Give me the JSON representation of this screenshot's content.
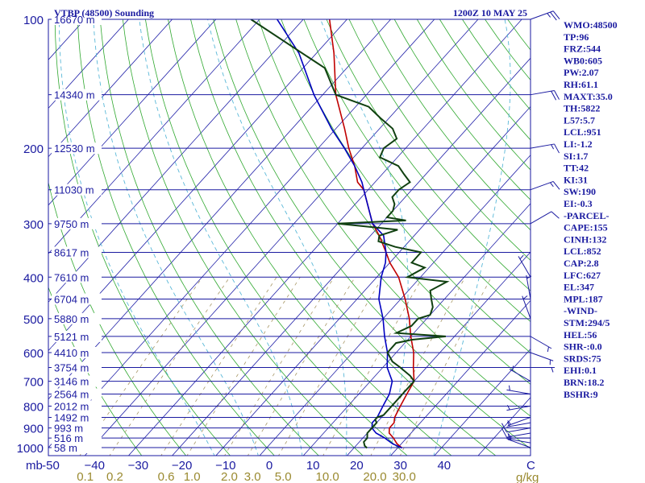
{
  "chart_data": {
    "type": "line",
    "title_left": "VTBP (48500) Sounding",
    "title_right": "1200Z 10 MAY 25",
    "y_unit_label": "mb",
    "mix_unit_label": "g/kg",
    "pressure_levels": [
      100,
      200,
      300,
      400,
      500,
      600,
      700,
      800,
      900,
      1000
    ],
    "temperature_ticks": [
      -50,
      -40,
      -30,
      -20,
      -10,
      0,
      10,
      20,
      30,
      40
    ],
    "temperature_end_tick": "C",
    "mixing_ratio_ticks": [
      "0.1",
      "0.2",
      "0.6",
      "1.0",
      "2.0",
      "3.0",
      "5.0",
      "10.0",
      "20.0",
      "30.0"
    ],
    "heights": [
      {
        "p": 100,
        "label": "16670 m"
      },
      {
        "p": 150,
        "label": "14340 m"
      },
      {
        "p": 200,
        "label": "12530 m"
      },
      {
        "p": 250,
        "label": "11030 m"
      },
      {
        "p": 300,
        "label": "9750 m"
      },
      {
        "p": 350,
        "label": "8617 m"
      },
      {
        "p": 400,
        "label": "7610 m"
      },
      {
        "p": 450,
        "label": "6704 m"
      },
      {
        "p": 500,
        "label": "5880 m"
      },
      {
        "p": 550,
        "label": "5121 m"
      },
      {
        "p": 600,
        "label": "4410 m"
      },
      {
        "p": 650,
        "label": "3754 m"
      },
      {
        "p": 700,
        "label": "3146 m"
      },
      {
        "p": 750,
        "label": "2564 m"
      },
      {
        "p": 800,
        "label": "2012 m"
      },
      {
        "p": 850,
        "label": "1492 m"
      },
      {
        "p": 900,
        "label": "993 m"
      },
      {
        "p": 950,
        "label": "516 m"
      },
      {
        "p": 1000,
        "label": "58 m"
      }
    ],
    "series": [
      {
        "p": [
          1002,
          980,
          950,
          925,
          900,
          875,
          850,
          800,
          750,
          700,
          650,
          600,
          550,
          500,
          450,
          400,
          370,
          350,
          320,
          300,
          250,
          240,
          220,
          200,
          180,
          150,
          120,
          100
        ],
        "t": [
          31,
          29,
          27,
          25,
          24,
          24,
          23,
          22,
          21,
          20,
          17,
          14,
          10,
          6,
          1,
          -5,
          -10,
          -13,
          -18,
          -22,
          -31,
          -34,
          -38,
          -43,
          -48,
          -57,
          -66,
          -74
        ]
      },
      {
        "p": [
          1002,
          980,
          950,
          925,
          900,
          875,
          850,
          800,
          750,
          700,
          650,
          600,
          550,
          500,
          450,
          400,
          370,
          350,
          320,
          300,
          250,
          240,
          220,
          200,
          180,
          150,
          120,
          100
        ],
        "t": [
          31,
          28,
          25,
          22,
          20,
          19,
          19,
          18,
          17,
          15,
          11,
          8,
          4,
          0,
          -5,
          -9,
          -11,
          -13,
          -17,
          -22,
          -31,
          -33,
          -38,
          -44,
          -51,
          -62,
          -74,
          -86
        ]
      },
      {
        "p": [
          1002,
          990,
          970,
          950,
          925,
          900,
          875,
          860,
          850,
          840,
          820,
          800,
          780,
          750,
          730,
          700,
          680,
          650,
          630,
          600,
          570,
          560,
          550,
          540,
          520,
          500,
          490,
          470,
          450,
          430,
          410,
          400,
          380,
          370,
          360,
          350,
          340,
          330,
          320,
          310,
          300,
          295,
          290,
          280,
          270,
          260,
          250,
          240,
          230,
          220,
          210,
          200,
          190,
          180,
          170,
          160,
          150,
          130,
          100
        ],
        "t": [
          23,
          22,
          21,
          21,
          20,
          20,
          20,
          19,
          19,
          20,
          20,
          20,
          20,
          20,
          20,
          20,
          18,
          14,
          11,
          8,
          8,
          11,
          18,
          6,
          8,
          8,
          10,
          9,
          7,
          5,
          7,
          -3,
          -1,
          -5,
          -5,
          -5,
          -12,
          -17,
          -18,
          -15,
          -30,
          -15,
          -20,
          -20,
          -21,
          -23,
          -23,
          -22,
          -25,
          -28,
          -34,
          -35,
          -34,
          -37,
          -42,
          -47,
          -57,
          -65,
          -92
        ]
      }
    ],
    "wind_barbs": [
      {
        "p": 1000,
        "dir": 290,
        "kt": 5
      },
      {
        "p": 975,
        "dir": 280,
        "kt": 5
      },
      {
        "p": 950,
        "dir": 270,
        "kt": 8
      },
      {
        "p": 925,
        "dir": 260,
        "kt": 10
      },
      {
        "p": 900,
        "dir": 260,
        "kt": 10
      },
      {
        "p": 875,
        "dir": 260,
        "kt": 8
      },
      {
        "p": 850,
        "dir": 250,
        "kt": 5
      },
      {
        "p": 800,
        "dir": 260,
        "kt": 5
      },
      {
        "p": 750,
        "dir": 280,
        "kt": 5
      },
      {
        "p": 700,
        "dir": 300,
        "kt": 5
      },
      {
        "p": 650,
        "dir": 90,
        "kt": 5
      },
      {
        "p": 600,
        "dir": 110,
        "kt": 5
      },
      {
        "p": 550,
        "dir": 120,
        "kt": 5
      },
      {
        "p": 500,
        "dir": 340,
        "kt": 5
      },
      {
        "p": 450,
        "dir": 350,
        "kt": 5
      },
      {
        "p": 400,
        "dir": 330,
        "kt": 5
      },
      {
        "p": 300,
        "dir": 60,
        "kt": 10
      },
      {
        "p": 250,
        "dir": 70,
        "kt": 15
      },
      {
        "p": 200,
        "dir": 80,
        "kt": 15
      },
      {
        "p": 150,
        "dir": 80,
        "kt": 20
      },
      {
        "p": 100,
        "dir": 70,
        "kt": 25
      }
    ]
  },
  "indices": [
    "WMO:48500",
    "TP:96",
    "FRZ:544",
    "WB0:605",
    "PW:2.07",
    "RH:61.1",
    "MAXT:35.0",
    "TH:5822",
    "L57:5.7",
    "LCL:951",
    "LI:-1.2",
    "SI:1.7",
    "TT:42",
    "KI:31",
    "SW:190",
    "EI:-0.3",
    "-PARCEL-",
    "CAPE:155",
    "CINH:132",
    "LCL:852",
    "CAP:2.8",
    "LFC:627",
    "EL:347",
    "MPL:187",
    "-WIND-",
    "STM:294/5",
    "HEL:56",
    "SHR-:0.0",
    "SRDS:75",
    "EHI:0.1",
    "BRN:18.2",
    "BSHR:9"
  ],
  "colors": {
    "axis": "#1a1aa0",
    "isobar": "#1a1aa0",
    "isotherm": "#2020a8",
    "dry_adiabat": "#30a830",
    "moist_adiabat": "#5ab8d8",
    "mixing_ratio": "#a89868",
    "temperature": "#c00000",
    "dewpoint": "#104010",
    "parcel": "#0000c0",
    "mixing_label": "#9a8a30"
  }
}
